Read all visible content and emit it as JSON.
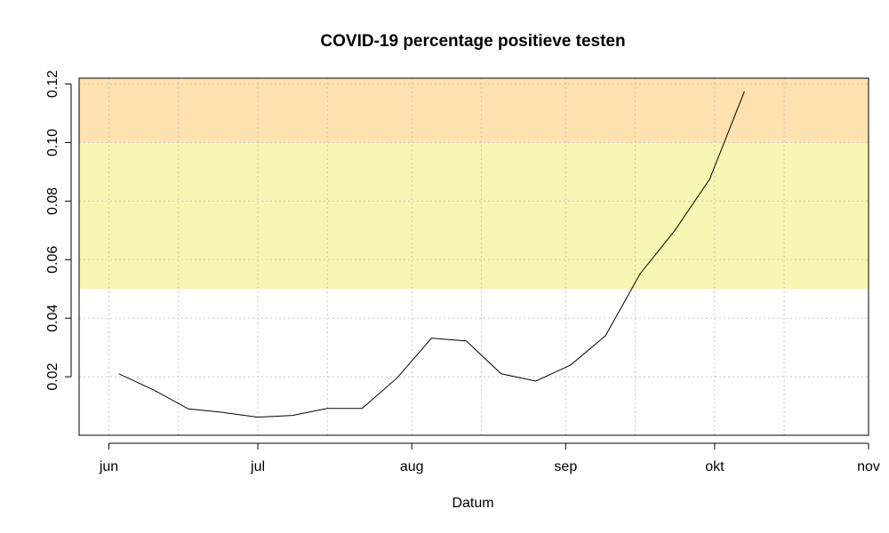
{
  "chart_data": {
    "type": "line",
    "title": "COVID-19 percentage positieve testen",
    "xlabel": "Datum",
    "ylabel": "",
    "x_ticks": [
      {
        "label": "jun",
        "date": "2020-06-01"
      },
      {
        "label": "jul",
        "date": "2020-07-01"
      },
      {
        "label": "aug",
        "date": "2020-08-01"
      },
      {
        "label": "sep",
        "date": "2020-09-01"
      },
      {
        "label": "okt",
        "date": "2020-10-01"
      },
      {
        "label": "nov",
        "date": "2020-11-01"
      }
    ],
    "x_grid_dates": [
      "2020-06-01",
      "2020-06-15",
      "2020-07-01",
      "2020-07-15",
      "2020-08-01",
      "2020-08-15",
      "2020-09-01",
      "2020-09-15",
      "2020-10-01",
      "2020-10-15",
      "2020-11-01"
    ],
    "xlim": [
      "2020-05-26",
      "2020-11-01"
    ],
    "ylim": [
      0.0,
      0.122
    ],
    "y_ticks": [
      0.02,
      0.04,
      0.06,
      0.08,
      0.1,
      0.12
    ],
    "y_tick_labels": [
      "0.02",
      "0.04",
      "0.06",
      "0.08",
      "0.10",
      "0.12"
    ],
    "bands": [
      {
        "from": 0.05,
        "to": 0.1,
        "color": "#f7f7b3"
      },
      {
        "from": 0.1,
        "to": 0.122,
        "color": "#fde2b0"
      }
    ],
    "grid": true,
    "series": [
      {
        "color": "#000000",
        "x": [
          "2020-06-03",
          "2020-06-10",
          "2020-06-17",
          "2020-06-24",
          "2020-07-01",
          "2020-07-08",
          "2020-07-15",
          "2020-07-22",
          "2020-07-29",
          "2020-08-05",
          "2020-08-12",
          "2020-08-19",
          "2020-08-26",
          "2020-09-02",
          "2020-09-09",
          "2020-09-16",
          "2020-09-23",
          "2020-09-30",
          "2020-10-07"
        ],
        "y": [
          0.021,
          0.0155,
          0.009,
          0.0078,
          0.0062,
          0.0068,
          0.0092,
          0.0092,
          0.0195,
          0.0332,
          0.0322,
          0.021,
          0.0185,
          0.024,
          0.034,
          0.0552,
          0.07,
          0.0875,
          0.1175
        ]
      }
    ]
  }
}
